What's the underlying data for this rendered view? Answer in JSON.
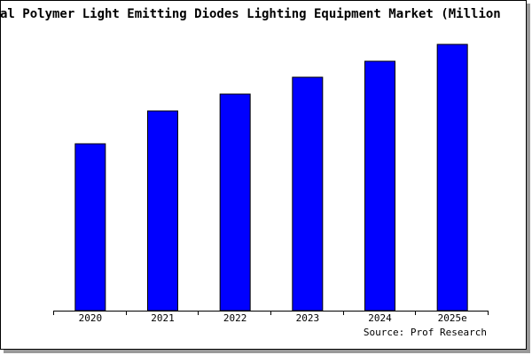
{
  "chart_data": {
    "type": "bar",
    "title": "al Polymer Light Emitting Diodes Lighting Equipment Market (Million",
    "categories": [
      "2020",
      "2021",
      "2022",
      "2023",
      "2024",
      "2025e"
    ],
    "values": [
      188,
      225,
      244,
      263,
      281,
      300
    ],
    "color": "#0000ff",
    "source": "Source: Prof Research"
  }
}
